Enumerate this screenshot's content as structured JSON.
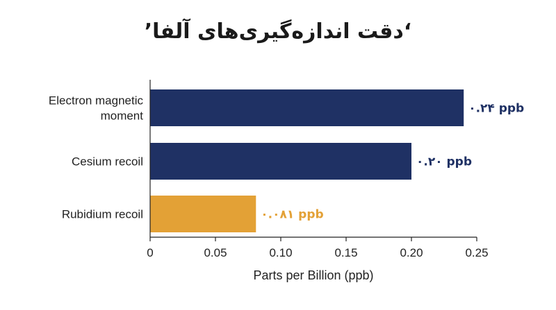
{
  "chart_data": {
    "type": "bar",
    "orientation": "horizontal",
    "title": "‘دقت اندازه‌گیری‌های آلفا’",
    "xlabel": "Parts per Billion (ppb)",
    "ylabel": "",
    "xlim": [
      0,
      0.25
    ],
    "xticks": [
      "0",
      "0.05",
      "0.10",
      "0.15",
      "0.20",
      "0.25"
    ],
    "grid": false,
    "categories": [
      {
        "lines": [
          "Electron magnetic",
          "moment"
        ],
        "value": 0.24,
        "label": "۰.۲۴ ppb",
        "color": "#1f3164"
      },
      {
        "lines": [
          "Cesium recoil"
        ],
        "value": 0.2,
        "label": "۰.۲۰ ppb",
        "color": "#1f3164"
      },
      {
        "lines": [
          "Rubidium recoil"
        ],
        "value": 0.081,
        "label": "۰.۰۸۱ ppb",
        "color": "#e3a136"
      }
    ]
  }
}
